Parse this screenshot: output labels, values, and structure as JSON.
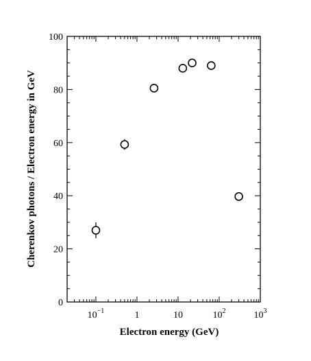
{
  "chart_data": {
    "type": "scatter",
    "xlabel": "Electron energy  (GeV)",
    "ylabel": "Cherenkov photons / Electron energy in GeV",
    "xscale": "log",
    "xlim": [
      0.02,
      1000
    ],
    "ylim": [
      0,
      100
    ],
    "x_ticks": [
      {
        "value": 0.1,
        "base": "10",
        "exp": "−1"
      },
      {
        "value": 1,
        "base": "1",
        "exp": ""
      },
      {
        "value": 10,
        "base": "10",
        "exp": ""
      },
      {
        "value": 100,
        "base": "10",
        "exp": "2"
      },
      {
        "value": 1000,
        "base": "10",
        "exp": "3"
      }
    ],
    "y_ticks": [
      0,
      20,
      40,
      60,
      80,
      100
    ],
    "y_minor_step": 5,
    "grid": false,
    "legend": "none",
    "marker": "open-circle",
    "points": [
      {
        "x": 0.1,
        "y": 27,
        "err": 3
      },
      {
        "x": 0.5,
        "y": 59.3,
        "err": 2
      },
      {
        "x": 2.6,
        "y": 80.5,
        "err": 0
      },
      {
        "x": 13,
        "y": 88,
        "err": 0
      },
      {
        "x": 22,
        "y": 90,
        "err": 0
      },
      {
        "x": 64,
        "y": 89,
        "err": 0
      },
      {
        "x": 300,
        "y": 39.7,
        "err": 0
      }
    ]
  }
}
